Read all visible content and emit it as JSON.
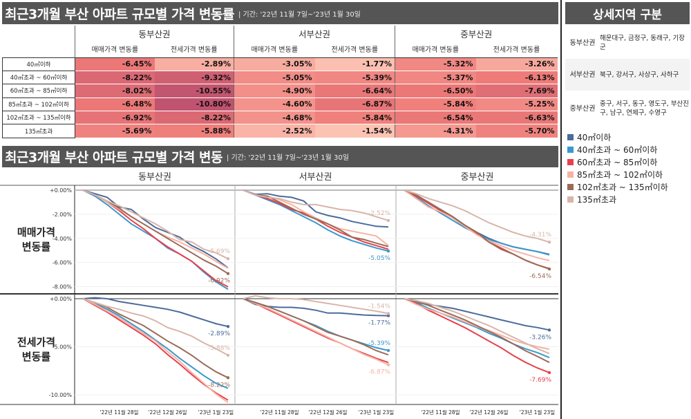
{
  "top": {
    "title": "최근3개월 부산 아파트 규모별 가격 변동률",
    "period": "| 기간: '22년 11월 7일~'23년 1월 30일"
  },
  "bottom": {
    "title": "최근3개월 부산 아파트 규모별 가격 변동",
    "period": "| 기간: '22년 11월 7일~'23년 1월 30일"
  },
  "regions": [
    "동부산권",
    "서부산권",
    "중부산권"
  ],
  "measures": [
    "매매가격 변동률",
    "전세가격 변동률"
  ],
  "row_labels": [
    "매매가격\n변동률",
    "전세가격\n변동률"
  ],
  "sizes": [
    "40㎡이하",
    "40㎡초과 ~ 60㎡이하",
    "60㎡초과 ~ 85㎡이하",
    "85㎡초과 ~ 102㎡이하",
    "102㎡초과 ~ 135㎡이하",
    "135㎡초과"
  ],
  "table": [
    [
      "-6.45%",
      "-2.89%",
      "-3.05%",
      "-1.77%",
      "-5.32%",
      "-3.26%"
    ],
    [
      "-8.22%",
      "-9.32%",
      "-5.05%",
      "-5.39%",
      "-5.37%",
      "-6.13%"
    ],
    [
      "-8.02%",
      "-10.55%",
      "-4.90%",
      "-6.64%",
      "-6.50%",
      "-7.69%"
    ],
    [
      "-6.48%",
      "-10.80%",
      "-4.60%",
      "-6.87%",
      "-5.84%",
      "-5.25%"
    ],
    [
      "-6.92%",
      "-8.22%",
      "-4.68%",
      "-5.84%",
      "-6.54%",
      "-6.63%"
    ],
    [
      "-5.69%",
      "-5.88%",
      "-2.52%",
      "-1.54%",
      "-4.31%",
      "-5.70%"
    ]
  ],
  "side": {
    "title": "상세지역 구분",
    "regions": [
      {
        "name": "동부산권",
        "districts": "해운대구, 금정구, 동래구, 기장군"
      },
      {
        "name": "서부산권",
        "districts": "북구, 강서구, 사상구, 사하구"
      },
      {
        "name": "중부산권",
        "districts": "중구, 서구, 동구, 영도구, 부산진구, 남구, 연제구, 수영구"
      }
    ]
  },
  "colors": [
    "#4a6b9c",
    "#3b98cb",
    "#e8414b",
    "#f7b2a2",
    "#9a6b58",
    "#d8b5a9"
  ],
  "chart_data": {
    "type": "line",
    "x": [
      "2022-11-07",
      "2022-11-14",
      "2022-11-21",
      "2022-11-28",
      "2022-12-05",
      "2022-12-12",
      "2022-12-19",
      "2022-12-26",
      "2023-01-02",
      "2023-01-09",
      "2023-01-16",
      "2023-01-23",
      "2023-01-30"
    ],
    "x_ticks": [
      "2022-11-28",
      "2022-12-26",
      "2023-01-23"
    ],
    "x_tick_labels": [
      "'22년 11월 28일",
      "'22년 12월 26일",
      "'23년 1월 23일"
    ],
    "rows": [
      {
        "ylim": [
          -8.6,
          0.4
        ],
        "y_ticks": [
          0,
          -2,
          -4,
          -6,
          -8
        ],
        "y_tick_labels": [
          "+0.00%",
          "-2.00%",
          "-4.00%",
          "-6.00%",
          "-8.00%"
        ]
      },
      {
        "ylim": [
          -11,
          0.5
        ],
        "y_ticks": [
          0,
          -5,
          -10
        ],
        "y_tick_labels": [
          "+0.00%",
          "-5.00%",
          "-10.00%"
        ]
      }
    ],
    "panels": [
      {
        "region": "동부산권",
        "measure": "매매가격 변동률",
        "labeled": [
          5,
          4
        ],
        "series": [
          [
            0,
            -0.3,
            -0.6,
            -1.4,
            -1.6,
            -2.4,
            -3.1,
            -3.5,
            -3.9,
            -4.6,
            -5.1,
            -5.7,
            -6.45
          ],
          [
            0,
            -0.5,
            -1.2,
            -2.0,
            -2.8,
            -3.4,
            -4.0,
            -4.8,
            -5.3,
            -5.9,
            -6.8,
            -7.6,
            -8.22
          ],
          [
            0,
            -0.4,
            -1.0,
            -1.7,
            -2.5,
            -3.2,
            -4.0,
            -4.7,
            -5.3,
            -5.9,
            -6.7,
            -7.5,
            -8.02
          ],
          [
            0,
            -0.4,
            -1.0,
            -1.6,
            -2.2,
            -2.8,
            -3.4,
            -3.9,
            -4.3,
            -4.8,
            -5.3,
            -5.9,
            -6.48
          ],
          [
            0,
            -0.4,
            -0.9,
            -1.5,
            -2.2,
            -2.8,
            -3.4,
            -4.0,
            -4.6,
            -5.2,
            -5.8,
            -6.3,
            -6.92
          ],
          [
            0,
            -0.4,
            -0.9,
            -1.3,
            -1.8,
            -2.3,
            -2.8,
            -3.4,
            -4.1,
            -4.3,
            -4.9,
            -5.2,
            -5.69
          ]
        ]
      },
      {
        "region": "서부산권",
        "measure": "매매가격 변동률",
        "labeled": [
          5,
          1
        ],
        "series": [
          [
            0,
            -0.35,
            -0.3,
            -0.5,
            -0.6,
            -0.9,
            -1.8,
            -2.1,
            -2.3,
            -2.6,
            -2.8,
            -3.0,
            -3.05
          ],
          [
            0,
            -0.4,
            -0.8,
            -1.2,
            -1.7,
            -2.2,
            -2.7,
            -3.3,
            -3.8,
            -4.2,
            -4.5,
            -4.8,
            -5.05
          ],
          [
            0,
            -0.4,
            -0.7,
            -1.1,
            -1.6,
            -1.9,
            -2.4,
            -3.0,
            -3.5,
            -3.9,
            -4.3,
            -4.6,
            -4.9
          ],
          [
            0,
            -0.4,
            -0.5,
            -0.8,
            -1.2,
            -1.8,
            -2.3,
            -2.8,
            -3.2,
            -3.4,
            -3.6,
            -3.8,
            -4.6
          ],
          [
            0,
            -0.4,
            -0.5,
            -1.0,
            -1.5,
            -2.0,
            -2.4,
            -2.8,
            -3.3,
            -3.9,
            -4.1,
            -4.4,
            -4.68
          ],
          [
            0,
            -0.4,
            -0.6,
            -0.7,
            -1.0,
            -1.2,
            -1.2,
            -1.4,
            -1.6,
            -1.7,
            -1.9,
            -2.2,
            -2.52
          ]
        ]
      },
      {
        "region": "중부산권",
        "measure": "매매가격 변동률",
        "labeled": [
          5,
          4
        ],
        "series": [
          [
            0,
            -0.5,
            -1.0,
            -1.6,
            -2.2,
            -2.9,
            -3.5,
            -4.0,
            -4.4,
            -4.7,
            -4.9,
            -5.1,
            -5.32
          ],
          [
            0,
            -0.6,
            -1.3,
            -1.9,
            -2.5,
            -3.1,
            -3.6,
            -4.1,
            -4.4,
            -4.7,
            -4.9,
            -5.1,
            -5.37
          ],
          [
            0,
            -0.5,
            -1.1,
            -1.7,
            -2.3,
            -3.0,
            -3.6,
            -4.3,
            -4.8,
            -5.3,
            -5.8,
            -6.2,
            -6.5
          ],
          [
            0,
            -0.7,
            -1.4,
            -1.8,
            -2.3,
            -3.0,
            -3.7,
            -4.2,
            -4.6,
            -5.0,
            -5.3,
            -5.6,
            -5.84
          ],
          [
            0,
            -0.4,
            -1.0,
            -1.6,
            -2.2,
            -2.9,
            -3.5,
            -4.3,
            -4.9,
            -5.3,
            -5.8,
            -6.2,
            -6.54
          ],
          [
            0,
            -0.3,
            -0.7,
            -1.0,
            -1.3,
            -1.7,
            -2.2,
            -2.7,
            -3.1,
            -3.5,
            -3.8,
            -4.0,
            -4.31
          ]
        ]
      },
      {
        "region": "동부산권",
        "measure": "전세가격 변동률",
        "labeled": [
          0,
          5,
          4
        ],
        "series": [
          [
            0,
            0.1,
            0,
            -0.3,
            -0.5,
            -0.7,
            -0.9,
            -1.1,
            -1.4,
            -1.8,
            -2.2,
            -2.6,
            -2.89
          ],
          [
            0,
            -0.5,
            -1.1,
            -1.8,
            -2.6,
            -3.4,
            -4.3,
            -5.2,
            -6.2,
            -7.1,
            -8.0,
            -8.8,
            -9.32
          ],
          [
            0,
            -0.7,
            -1.4,
            -2.2,
            -3.0,
            -3.8,
            -4.7,
            -5.8,
            -6.8,
            -7.9,
            -8.9,
            -9.8,
            -10.55
          ],
          [
            0,
            -0.6,
            -1.3,
            -2.0,
            -2.8,
            -3.6,
            -4.4,
            -5.5,
            -6.5,
            -7.7,
            -8.8,
            -9.9,
            -10.8
          ],
          [
            0,
            -0.4,
            -0.9,
            -1.6,
            -2.2,
            -2.8,
            -3.6,
            -4.4,
            -5.1,
            -5.9,
            -6.8,
            -7.6,
            -8.22
          ],
          [
            0,
            -0.4,
            -0.8,
            -1.1,
            -1.5,
            -1.8,
            -2.3,
            -3.0,
            -3.4,
            -3.9,
            -4.6,
            -5.2,
            -5.88
          ]
        ]
      },
      {
        "region": "서부산권",
        "measure": "전세가격 변동률",
        "labeled": [
          5,
          0,
          1,
          3
        ],
        "series": [
          [
            0,
            -0.6,
            -0.8,
            -0.9,
            -0.9,
            -1.0,
            -1.2,
            -1.5,
            -1.5,
            -1.6,
            -1.7,
            -1.75,
            -1.77
          ],
          [
            0,
            -0.4,
            -0.8,
            -1.3,
            -1.8,
            -2.3,
            -2.8,
            -3.4,
            -3.9,
            -4.3,
            -4.7,
            -5.1,
            -5.39
          ],
          [
            0,
            -0.5,
            -1.1,
            -1.7,
            -2.3,
            -2.9,
            -3.5,
            -4.1,
            -4.6,
            -5.2,
            -5.7,
            -6.2,
            -6.64
          ],
          [
            0,
            -0.5,
            -1.0,
            -1.6,
            -2.2,
            -2.8,
            -3.4,
            -4.0,
            -4.6,
            -5.2,
            -5.8,
            -6.3,
            -6.87
          ],
          [
            0,
            -0.4,
            -0.8,
            -1.3,
            -1.8,
            -2.3,
            -2.9,
            -3.5,
            -3.9,
            -4.3,
            -4.8,
            -5.4,
            -5.84
          ],
          [
            0,
            0.3,
            0.1,
            0,
            0,
            -0.1,
            -0.3,
            -0.5,
            -0.7,
            -0.9,
            -1.1,
            -1.3,
            -1.54
          ]
        ]
      },
      {
        "region": "중부산권",
        "measure": "전세가격 변동률",
        "labeled": [
          0,
          2
        ],
        "series": [
          [
            0,
            -0.4,
            -0.6,
            -0.8,
            -1.0,
            -1.3,
            -1.6,
            -1.9,
            -2.2,
            -2.5,
            -2.8,
            -3.0,
            -3.26
          ],
          [
            0,
            -0.4,
            -1.0,
            -1.5,
            -2.0,
            -2.5,
            -3.0,
            -3.6,
            -4.1,
            -4.7,
            -5.2,
            -5.6,
            -6.13
          ],
          [
            0,
            -0.5,
            -1.2,
            -1.8,
            -2.4,
            -3.0,
            -3.7,
            -4.4,
            -5.1,
            -5.9,
            -6.6,
            -7.2,
            -7.69
          ],
          [
            0,
            -0.6,
            -1.1,
            -1.5,
            -1.9,
            -2.4,
            -2.9,
            -3.3,
            -3.8,
            -4.3,
            -4.7,
            -5.0,
            -5.25
          ],
          [
            0,
            -0.3,
            -0.7,
            -1.2,
            -1.7,
            -2.2,
            -2.8,
            -3.4,
            -4.0,
            -4.7,
            -5.4,
            -6.0,
            -6.63
          ],
          [
            0,
            -0.2,
            -0.5,
            -0.9,
            -1.3,
            -1.8,
            -2.3,
            -2.8,
            -3.4,
            -4.0,
            -4.6,
            -5.2,
            -5.7
          ]
        ]
      }
    ],
    "point_labels": [
      [
        "",
        "",
        "",
        "",
        "-6.92%",
        "-5.69%"
      ],
      [
        "",
        "-5.05%",
        "",
        "",
        "",
        "-2.52%"
      ],
      [
        "",
        "",
        "",
        "",
        "-6.54%",
        "-4.31%"
      ],
      [
        "-2.89%",
        "",
        "",
        "",
        "-8.22%",
        "-5.88%"
      ],
      [
        "-1.77%",
        "-5.39%",
        "",
        "-6.87%",
        "",
        "-1.54%"
      ],
      [
        "-3.26%",
        "",
        "-7.69%",
        "",
        "",
        ""
      ]
    ]
  }
}
